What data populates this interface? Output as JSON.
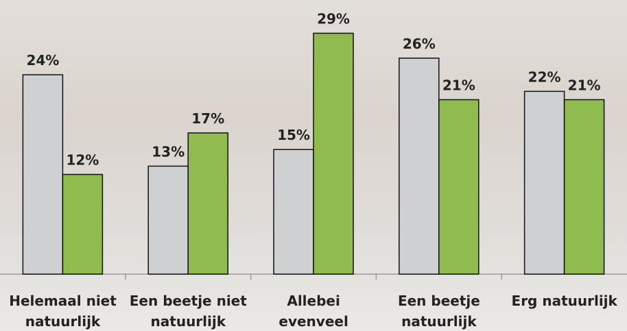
{
  "chart_data": {
    "type": "bar",
    "categories": [
      "Helemaal niet natuurlijk",
      "Een beetje niet natuurlijk",
      "Allebei evenveel",
      "Een beetje natuurlijk",
      "Erg natuurlijk"
    ],
    "series": [
      {
        "color": "#cfd0d2",
        "values": [
          24,
          13,
          15,
          26,
          22
        ],
        "value_labels": [
          "24%",
          "13%",
          "15%",
          "26%",
          "22%"
        ]
      },
      {
        "color": "#8fbb4f",
        "values": [
          12,
          17,
          29,
          21,
          21
        ],
        "value_labels": [
          "12%",
          "17%",
          "29%",
          "21%",
          "21%"
        ]
      }
    ],
    "ylim": [
      0,
      33
    ]
  }
}
